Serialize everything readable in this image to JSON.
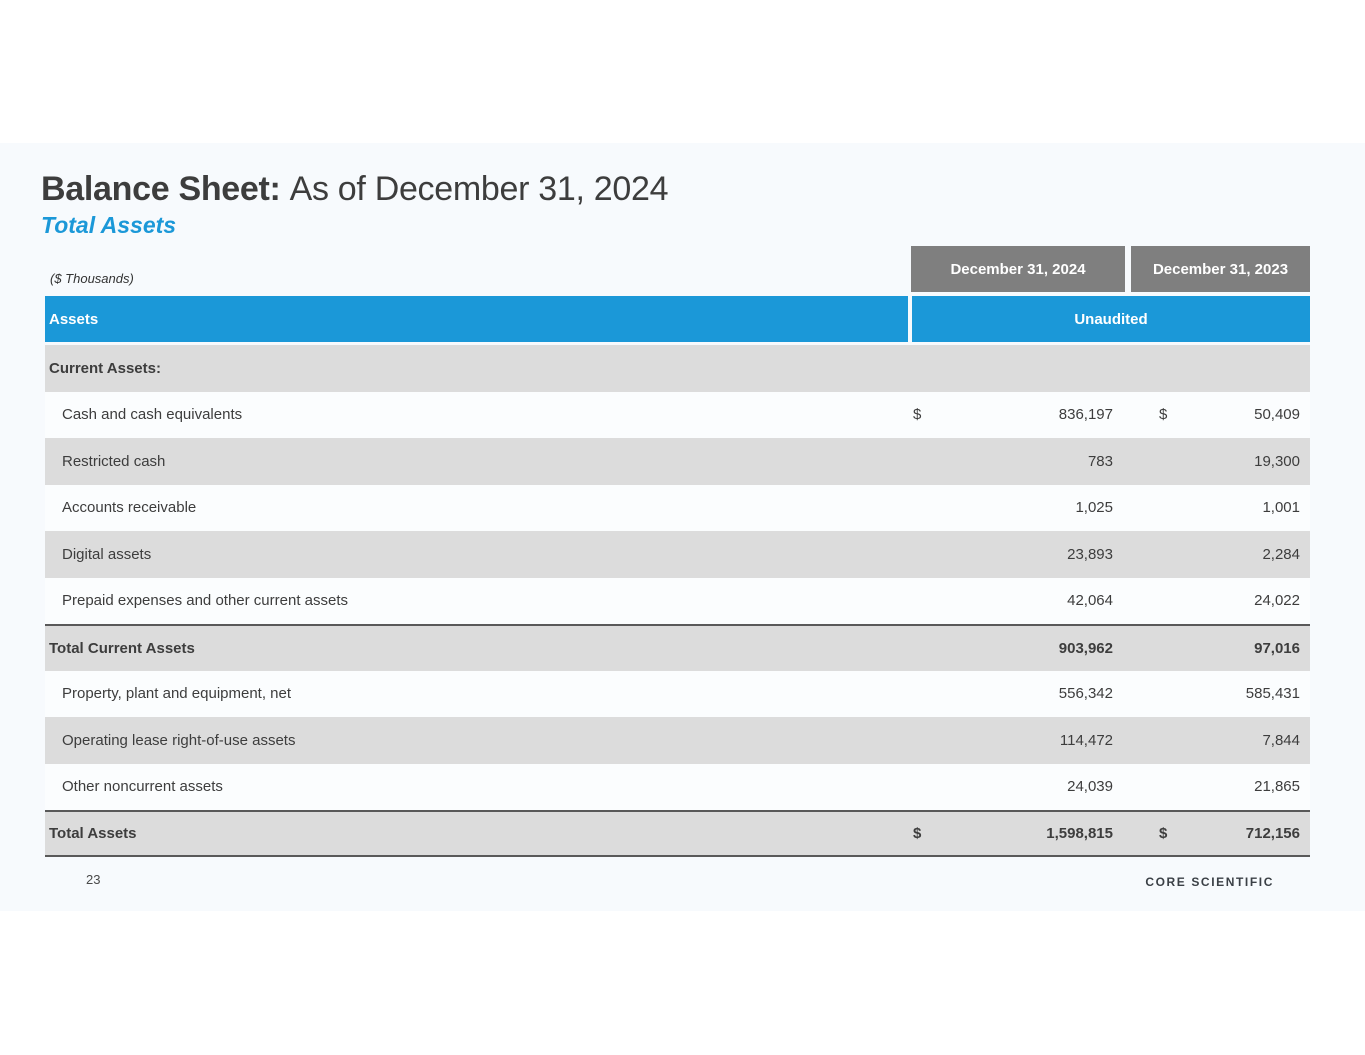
{
  "page": {
    "title_bold": "Balance Sheet:",
    "title_rest": "As of December 31, 2024",
    "subtitle": "Total Assets",
    "units_note": "($ Thousands)",
    "page_number": "23",
    "brand": "CORE SCIENTIFIC"
  },
  "table": {
    "date_headers": [
      "December 31, 2024",
      "December 31, 2023"
    ],
    "assets_header": "Assets",
    "unaudited_label": "Unaudited",
    "rows": [
      {
        "label": "Current Assets:",
        "d1": "",
        "v2024": "",
        "d2": "",
        "v2023": ""
      },
      {
        "label": "Cash and cash equivalents",
        "d1": "$",
        "v2024": "836,197",
        "d2": "$",
        "v2023": "50,409"
      },
      {
        "label": "Restricted cash",
        "d1": "",
        "v2024": "783",
        "d2": "",
        "v2023": "19,300"
      },
      {
        "label": "Accounts receivable",
        "d1": "",
        "v2024": "1,025",
        "d2": "",
        "v2023": "1,001"
      },
      {
        "label": "Digital assets",
        "d1": "",
        "v2024": "23,893",
        "d2": "",
        "v2023": "2,284"
      },
      {
        "label": "Prepaid expenses and other current assets",
        "d1": "",
        "v2024": "42,064",
        "d2": "",
        "v2023": "24,022"
      },
      {
        "label": "Total Current Assets",
        "d1": "",
        "v2024": "903,962",
        "d2": "",
        "v2023": "97,016"
      },
      {
        "label": "Property, plant and equipment, net",
        "d1": "",
        "v2024": "556,342",
        "d2": "",
        "v2023": "585,431"
      },
      {
        "label": "Operating lease right-of-use assets",
        "d1": "",
        "v2024": "114,472",
        "d2": "",
        "v2023": "7,844"
      },
      {
        "label": "Other noncurrent assets",
        "d1": "",
        "v2024": "24,039",
        "d2": "",
        "v2023": "21,865"
      },
      {
        "label": "Total Assets",
        "d1": "$",
        "v2024": "1,598,815",
        "d2": "$",
        "v2023": "712,156"
      }
    ]
  },
  "colors": {
    "accent_blue": "#1b98d8",
    "header_gray": "#7f7f7f",
    "row_gray": "#dcdcdc",
    "row_light": "#fbfdfe",
    "slide_bg": "#f7fafd",
    "text_dark": "#3d3d3d",
    "border_dark": "#595959"
  }
}
